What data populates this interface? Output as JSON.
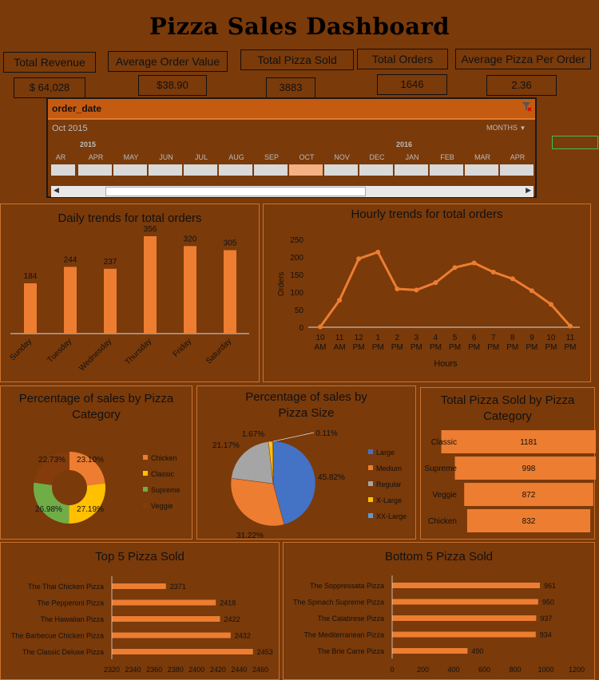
{
  "title": "Pizza Sales Dashboard",
  "kpis": [
    {
      "label": "Total Revenue",
      "value": "$ 64,028"
    },
    {
      "label": "Average Order Value",
      "value": "$38.90"
    },
    {
      "label": "Total Pizza Sold",
      "value": "3883"
    },
    {
      "label": "Total Orders",
      "value": "1646"
    },
    {
      "label": "Average Pizza Per Order",
      "value": "2.36"
    }
  ],
  "slicer": {
    "field": "order_date",
    "selection": "Oct 2015",
    "period": "MONTHS",
    "years": [
      "2015",
      "2016"
    ],
    "months": [
      "AR",
      "APR",
      "MAY",
      "JUN",
      "JUL",
      "AUG",
      "SEP",
      "OCT",
      "NOV",
      "DEC",
      "JAN",
      "FEB",
      "MAR",
      "APR"
    ],
    "selected_month": "OCT"
  },
  "colors": {
    "background": "#7a3a0a",
    "accent": "#ed7d31",
    "slicer_header": "#c55a11",
    "chicken": "#ed7d31",
    "classic": "#ffc000",
    "supreme": "#70ad47",
    "veggie": "#843c0c",
    "large": "#4472c4",
    "medium": "#ed7d31",
    "regular": "#a5a5a5",
    "xlarge": "#ffc000",
    "xxlarge": "#5b9bd5"
  },
  "chart_data": [
    {
      "type": "bar",
      "title": "Daily trends for total orders",
      "categories": [
        "Sunday",
        "Tuesday",
        "Wednesday",
        "Thursday",
        "Friday",
        "Saturday"
      ],
      "values": [
        184,
        244,
        237,
        356,
        320,
        305
      ]
    },
    {
      "type": "line",
      "title": "Hourly trends for total orders",
      "xlabel": "Hours",
      "ylabel": "Orders",
      "categories": [
        "10 AM",
        "11 AM",
        "12 PM",
        "1 PM",
        "2 PM",
        "3 PM",
        "4 PM",
        "5 PM",
        "6 PM",
        "7 PM",
        "8 PM",
        "9 PM",
        "10 PM",
        "11 PM"
      ],
      "values": [
        1,
        77,
        195,
        214,
        109,
        106,
        127,
        170,
        183,
        157,
        138,
        104,
        65,
        3
      ],
      "yticks": [
        0,
        50,
        100,
        150,
        200,
        250
      ],
      "ylim": [
        0,
        250
      ]
    },
    {
      "type": "pie",
      "title": "Percentage of sales by Pizza Category",
      "categories": [
        "Chicken",
        "Classic",
        "Supreme",
        "Veggie"
      ],
      "values": [
        23.1,
        27.19,
        26.98,
        22.73
      ],
      "labels": [
        "23.10%",
        "27.19%",
        "26.98%",
        "22.73%"
      ]
    },
    {
      "type": "pie",
      "title": "Percentage of sales by Pizza Size",
      "categories": [
        "Large",
        "Medium",
        "Regular",
        "X-Large",
        "XX-Large"
      ],
      "values": [
        45.82,
        31.22,
        21.17,
        1.67,
        0.11
      ],
      "labels": [
        "45.82%",
        "31.22%",
        "21.17%",
        "1.67%",
        "0.11%"
      ]
    },
    {
      "type": "bar",
      "title": "Total Pizza Sold by Pizza Category",
      "categories": [
        "Classic",
        "Supreme",
        "Veggie",
        "Chicken"
      ],
      "values": [
        1181,
        998,
        872,
        832
      ]
    },
    {
      "type": "bar",
      "title": "Top 5 Pizza Sold",
      "categories": [
        "The Thai Chicken Pizza",
        "The Pepperoni Pizza",
        "The Hawaiian Pizza",
        "The Barbecue Chicken Pizza",
        "The Classic Deluxe Pizza"
      ],
      "values": [
        2371,
        2418,
        2422,
        2432,
        2453
      ],
      "xticks": [
        2320,
        2340,
        2360,
        2380,
        2400,
        2420,
        2440,
        2460
      ],
      "xlim": [
        2320,
        2460
      ]
    },
    {
      "type": "bar",
      "title": "Bottom 5 Pizza Sold",
      "categories": [
        "The Soppressata Pizza",
        "The Spinach Supreme Pizza",
        "The Calabrese Pizza",
        "The Mediterranean Pizza",
        "The Brie Carre Pizza"
      ],
      "values": [
        961,
        950,
        937,
        934,
        490
      ],
      "xticks": [
        0,
        200,
        400,
        600,
        800,
        1000,
        1200
      ],
      "xlim": [
        0,
        1200
      ]
    }
  ]
}
